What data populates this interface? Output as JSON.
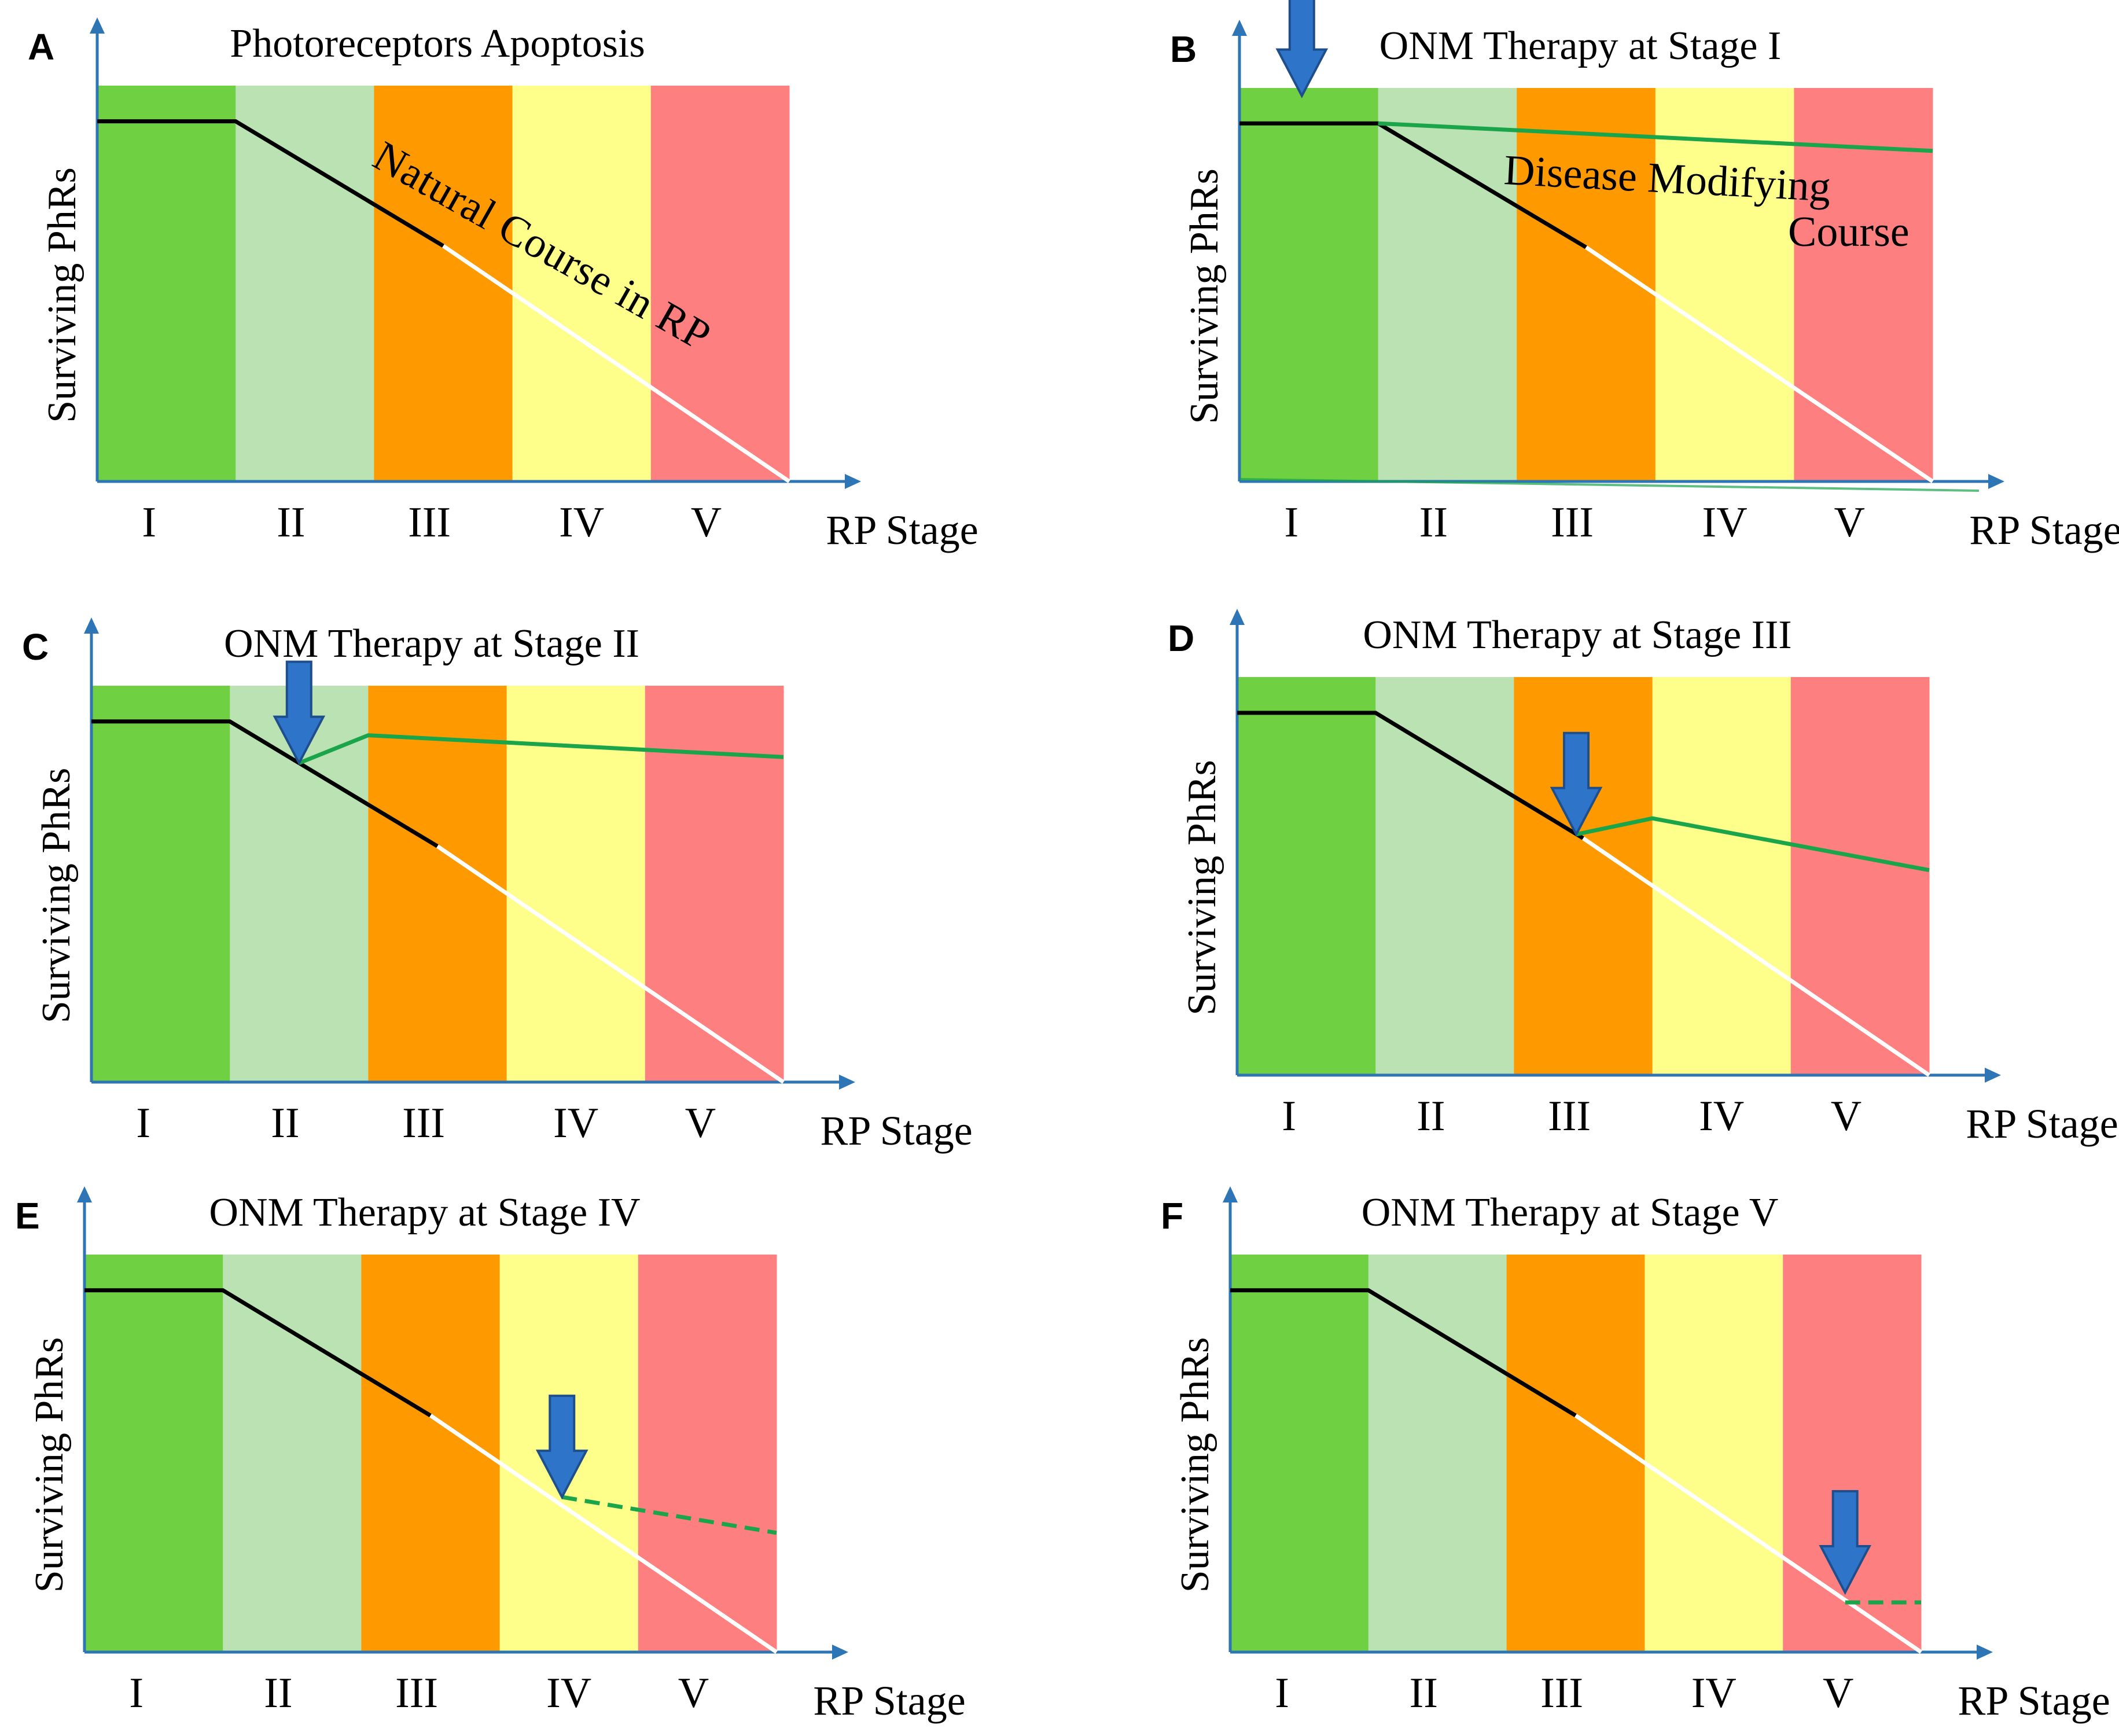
{
  "chart_data": [
    {
      "type": "line",
      "panel": "A",
      "title": "Photoreceptors Apoptosis",
      "ylabel": "Surviving  PhRs",
      "xlabel": "RP Stage",
      "categories": [
        "I",
        "II",
        "III",
        "IV",
        "V"
      ],
      "stage_colors": [
        "#6fd042",
        "#bae2b3",
        "#fe9a00",
        "#fefe8b",
        "#fe7f80"
      ],
      "ylim": [
        0,
        100
      ],
      "natural_course": [
        [
          0,
          91
        ],
        [
          1,
          91
        ],
        [
          2.5,
          59.5
        ],
        [
          5,
          0
        ]
      ],
      "annotation": "Natural Course in RP"
    },
    {
      "type": "line",
      "panel": "B",
      "title": "ONM Therapy  at Stage I",
      "ylabel": "Surviving  PhRs",
      "xlabel": "RP Stage",
      "categories": [
        "I",
        "II",
        "III",
        "IV",
        "V"
      ],
      "stage_colors": [
        "#6fd042",
        "#bae2b3",
        "#fe9a00",
        "#fefe8b",
        "#fe7f80"
      ],
      "ylim": [
        0,
        100
      ],
      "natural_course": [
        [
          0,
          91
        ],
        [
          1,
          91
        ],
        [
          2.5,
          59.5
        ],
        [
          5,
          0
        ]
      ],
      "therapy_course": [
        [
          1,
          91
        ],
        [
          5,
          84
        ]
      ],
      "therapy_dashed": false,
      "arrow_at": [
        0.45,
        98
      ],
      "annotation_lines": [
        "Disease Modifying",
        "Course"
      ]
    },
    {
      "type": "line",
      "panel": "C",
      "title": "ONM Therapy  at Stage II",
      "ylabel": "Surviving  PhRs",
      "xlabel": "RP Stage",
      "categories": [
        "I",
        "II",
        "III",
        "IV",
        "V"
      ],
      "stage_colors": [
        "#6fd042",
        "#bae2b3",
        "#fe9a00",
        "#fefe8b",
        "#fe7f80"
      ],
      "ylim": [
        0,
        100
      ],
      "natural_course": [
        [
          0,
          91
        ],
        [
          1,
          91
        ],
        [
          2.5,
          59.5
        ],
        [
          5,
          0
        ]
      ],
      "therapy_course": [
        [
          1.5,
          80.5
        ],
        [
          2,
          87.5
        ],
        [
          5,
          82
        ]
      ],
      "therapy_dashed": false,
      "arrow_at": [
        1.5,
        80.5
      ]
    },
    {
      "type": "line",
      "panel": "D",
      "title": "ONM Therapy at Stage III",
      "ylabel": "Surviving  PhRs",
      "xlabel": "RP Stage",
      "categories": [
        "I",
        "II",
        "III",
        "IV",
        "V"
      ],
      "stage_colors": [
        "#6fd042",
        "#bae2b3",
        "#fe9a00",
        "#fefe8b",
        "#fe7f80"
      ],
      "ylim": [
        0,
        100
      ],
      "natural_course": [
        [
          0,
          91
        ],
        [
          1,
          91
        ],
        [
          2.5,
          59.5
        ],
        [
          5,
          0
        ]
      ],
      "therapy_course": [
        [
          2.45,
          60.5
        ],
        [
          3,
          64.5
        ],
        [
          5,
          51.5
        ]
      ],
      "therapy_dashed": false,
      "arrow_at": [
        2.45,
        60.5
      ]
    },
    {
      "type": "line",
      "panel": "E",
      "title": "ONM Therapy at Stage IV",
      "ylabel": "Surviving  PhRs",
      "xlabel": "RP Stage",
      "categories": [
        "I",
        "II",
        "III",
        "IV",
        "V"
      ],
      "stage_colors": [
        "#6fd042",
        "#bae2b3",
        "#fe9a00",
        "#fefe8b",
        "#fe7f80"
      ],
      "ylim": [
        0,
        100
      ],
      "natural_course": [
        [
          0,
          91
        ],
        [
          1,
          91
        ],
        [
          2.5,
          59.5
        ],
        [
          5,
          0
        ]
      ],
      "therapy_course": [
        [
          3.45,
          39
        ],
        [
          5,
          30
        ]
      ],
      "therapy_dashed": true,
      "arrow_at": [
        3.45,
        39
      ]
    },
    {
      "type": "line",
      "panel": "F",
      "title": "ONM Therapy at Stage V",
      "ylabel": "Surviving  PhRs",
      "xlabel": "RP Stage",
      "categories": [
        "I",
        "II",
        "III",
        "IV",
        "V"
      ],
      "stage_colors": [
        "#6fd042",
        "#bae2b3",
        "#fe9a00",
        "#fefe8b",
        "#fe7f80"
      ],
      "ylim": [
        0,
        100
      ],
      "natural_course": [
        [
          0,
          91
        ],
        [
          1,
          91
        ],
        [
          2.5,
          59.5
        ],
        [
          5,
          0
        ]
      ],
      "therapy_course": [
        [
          4.45,
          12.5
        ],
        [
          5,
          12.5
        ]
      ],
      "therapy_dashed": true,
      "arrow_at": [
        4.45,
        15
      ]
    }
  ],
  "colors": {
    "natural_solid": "#000000",
    "natural_late": "#ffffff",
    "therapy": "#1aa54a",
    "axis": "#2e75b6",
    "arrow_fill": "#2e75c9",
    "arrow_stroke": "#1f4e8c"
  }
}
